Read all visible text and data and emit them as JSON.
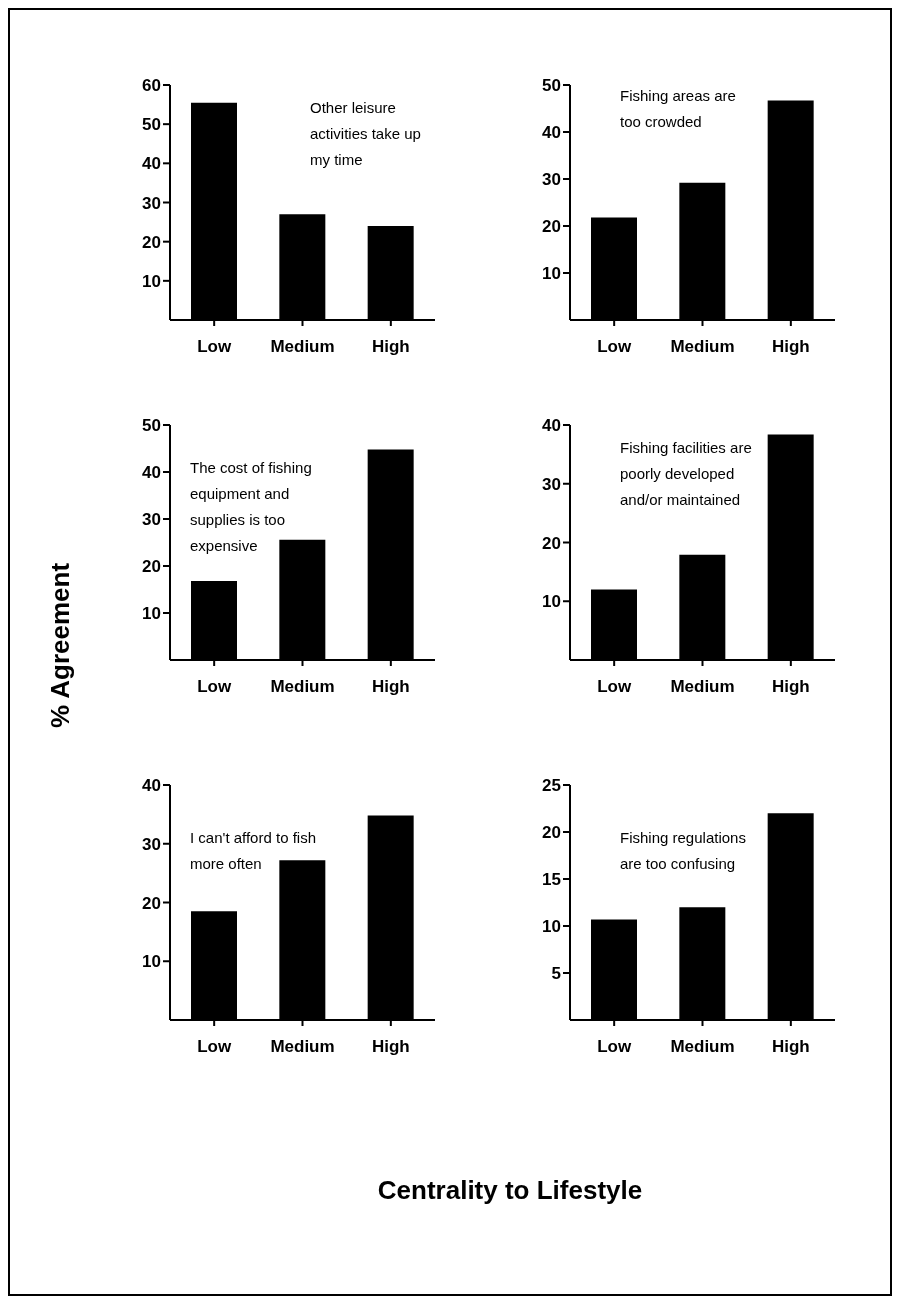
{
  "chart_data": [
    {
      "type": "bar",
      "categories": [
        "Low",
        "Medium",
        "High"
      ],
      "values": [
        55.5,
        27,
        24
      ],
      "color": "#000000",
      "ylim": [
        0,
        60
      ],
      "yticks": [
        10,
        20,
        30,
        40,
        50,
        60
      ],
      "grid": false,
      "legend": false,
      "annotations": [
        "Other leisure activities take up my time"
      ]
    },
    {
      "type": "bar",
      "categories": [
        "Low",
        "Medium",
        "High"
      ],
      "values": [
        21.8,
        29.2,
        46.7
      ],
      "color": "#000000",
      "ylim": [
        0,
        50
      ],
      "yticks": [
        10,
        20,
        30,
        40,
        50
      ],
      "grid": false,
      "legend": false,
      "annotations": [
        "Fishing areas are too crowded"
      ]
    },
    {
      "type": "bar",
      "categories": [
        "Low",
        "Medium",
        "High"
      ],
      "values": [
        16.8,
        25.6,
        44.8
      ],
      "color": "#000000",
      "ylim": [
        0,
        50
      ],
      "yticks": [
        10,
        20,
        30,
        40,
        50
      ],
      "grid": false,
      "legend": false,
      "ylabel": "% Agreement",
      "annotations": [
        "The cost of fishing equipment and supplies is too expensive"
      ]
    },
    {
      "type": "bar",
      "categories": [
        "Low",
        "Medium",
        "High"
      ],
      "values": [
        12,
        17.9,
        38.4
      ],
      "color": "#000000",
      "ylim": [
        0,
        40
      ],
      "yticks": [
        10,
        20,
        30,
        40
      ],
      "grid": false,
      "legend": false,
      "annotations": [
        "Fishing facilities are poorly developed and/or maintained"
      ]
    },
    {
      "type": "bar",
      "categories": [
        "Low",
        "Medium",
        "High"
      ],
      "values": [
        18.5,
        27.2,
        34.8
      ],
      "color": "#000000",
      "ylim": [
        0,
        40
      ],
      "yticks": [
        10,
        20,
        30,
        40
      ],
      "grid": false,
      "legend": false,
      "xlabel": "Centrality to Lifestyle",
      "annotations": [
        "I can't afford to fish more often"
      ]
    },
    {
      "type": "bar",
      "categories": [
        "Low",
        "Medium",
        "High"
      ],
      "values": [
        10.7,
        12,
        22
      ],
      "color": "#000000",
      "ylim": [
        0,
        25
      ],
      "yticks": [
        5,
        10,
        15,
        20,
        25
      ],
      "grid": false,
      "legend": false,
      "annotations": [
        "Fishing regulations are too confusing"
      ]
    }
  ]
}
